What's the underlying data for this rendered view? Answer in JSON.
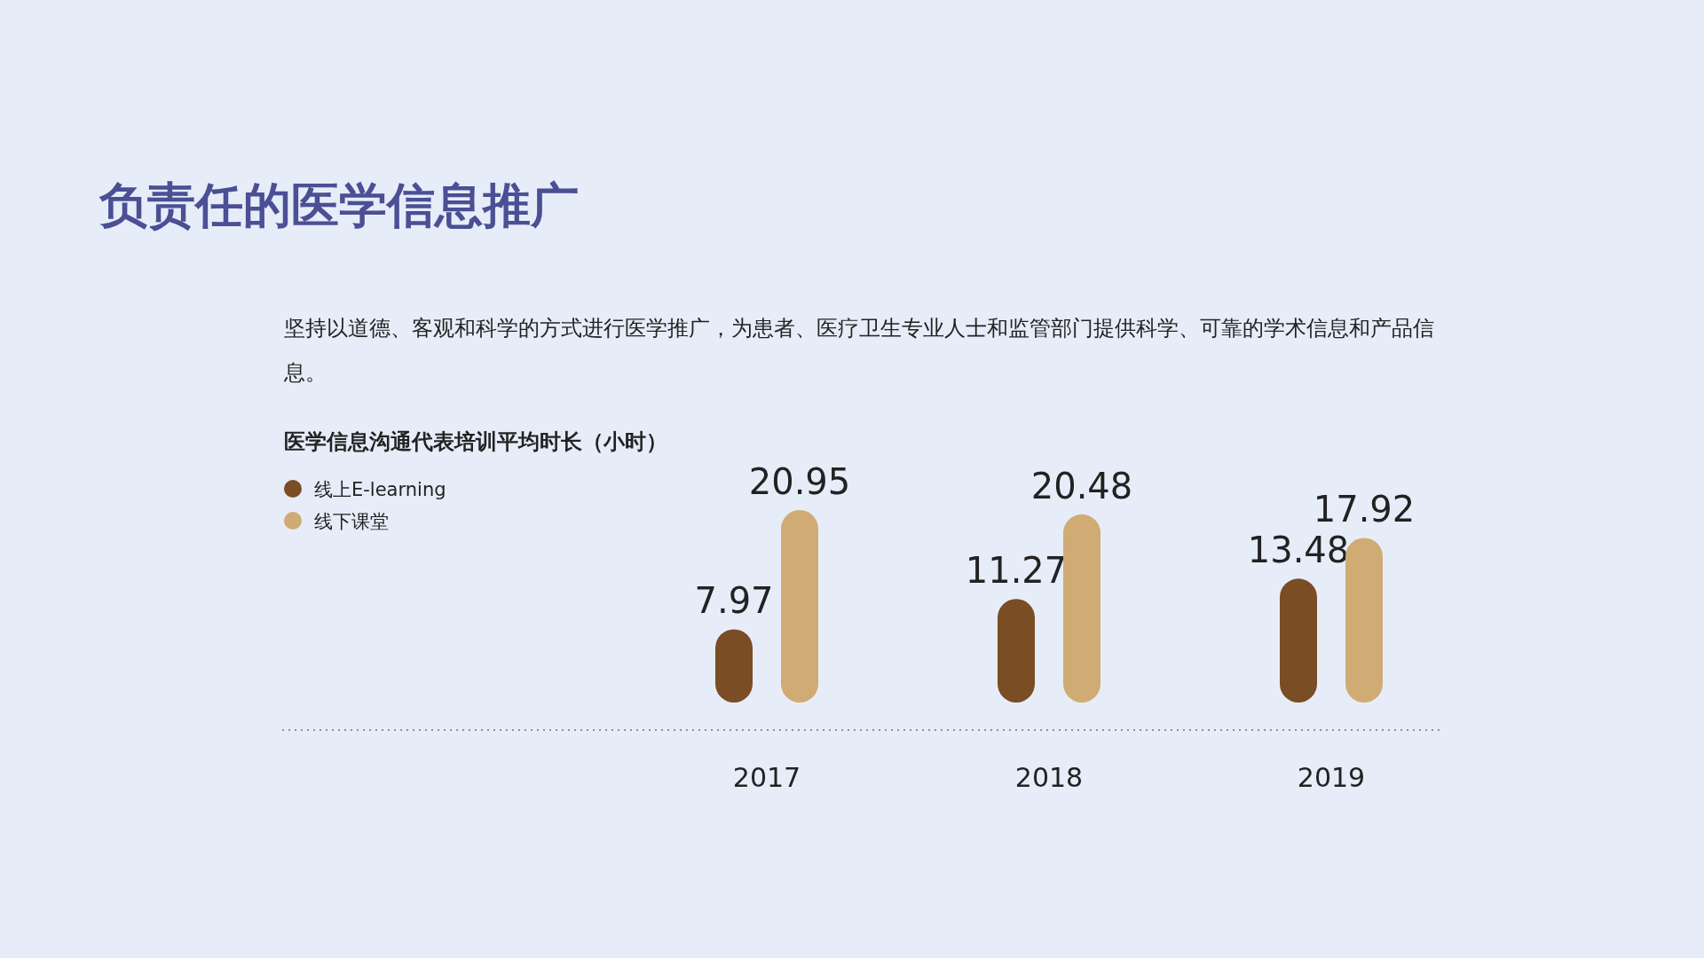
{
  "chart_data": {
    "type": "bar",
    "title": "负责任的医学信息推广",
    "subtitle": "医学信息沟通代表培训平均时长（小时）",
    "annotations": [
      "坚持以道德、客观和科学的方式进行医学推广，为患者、医疗卫生专业人士和监管部门提供科学、可靠的学术信息和产品信息。"
    ],
    "categories": [
      "2017",
      "2018",
      "2019"
    ],
    "series": [
      {
        "name": "线上E-learning",
        "color": "#7a4d24",
        "values": [
          7.97,
          11.27,
          13.48
        ]
      },
      {
        "name": "线下课堂",
        "color": "#d0ab74",
        "values": [
          20.95,
          20.48,
          17.92
        ]
      }
    ],
    "data_labels": true,
    "legend": "top left",
    "marker": "circle"
  }
}
